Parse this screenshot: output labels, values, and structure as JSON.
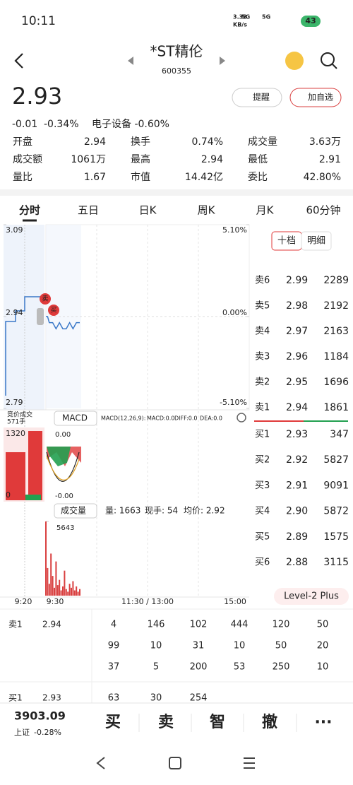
{
  "status": {
    "time": "10:11",
    "net_speed": "3.38",
    "net_unit": "KB/s",
    "signal1": "5G",
    "signal2": "5G",
    "battery": "43"
  },
  "header": {
    "title": "*ST精伦",
    "code": "600355"
  },
  "quote": {
    "price": "2.93",
    "change": "-0.01",
    "change_pct": "-0.34%",
    "sector": "电子设备 -0.60%",
    "remind": "提醒",
    "watch": "加自选"
  },
  "stats": [
    [
      {
        "label": "开盘",
        "value": "2.94"
      },
      {
        "label": "换手",
        "value": "0.74%"
      },
      {
        "label": "成交量",
        "value": "3.63万"
      }
    ],
    [
      {
        "label": "成交额",
        "value": "1061万"
      },
      {
        "label": "最高",
        "value": "2.94"
      },
      {
        "label": "最低",
        "value": "2.91"
      }
    ],
    [
      {
        "label": "量比",
        "value": "1.67"
      },
      {
        "label": "市值",
        "value": "14.42亿"
      },
      {
        "label": "委比",
        "value": "42.80%"
      }
    ]
  ],
  "tabs": [
    "分时",
    "五日",
    "日K",
    "周K",
    "月K",
    "60分钟"
  ],
  "chart_data": {
    "type": "line",
    "xlim": [
      0,
      240
    ],
    "x": [
      0,
      2,
      4,
      8,
      12,
      16,
      20,
      24,
      28,
      32,
      36,
      40
    ],
    "series": [
      {
        "color": "#3a78c8",
        "values": [
          2.94,
          2.94,
          2.93,
          2.93,
          2.92,
          2.93,
          2.92,
          2.92,
          2.93,
          2.92,
          2.93,
          2.93
        ]
      }
    ],
    "ylim": [
      2.79,
      3.09
    ],
    "yticks": [
      3.09,
      2.94,
      2.79
    ],
    "y2lim": [
      -5.1,
      5.1
    ],
    "y2ticks": [
      {
        "value": 5.1,
        "label": "5.10%"
      },
      {
        "value": 0,
        "label": "0.00%"
      },
      {
        "value": -5.1,
        "label": "-5.10%"
      }
    ],
    "markers": [
      "卖",
      "买"
    ],
    "auction": {
      "label": "竞价成交",
      "volume": "571手",
      "ticks": [
        "1320",
        "0"
      ]
    },
    "macd": {
      "name": "MACD",
      "params": "MACD(12,26,9):",
      "macd": "MACD:0.0",
      "diff": "DIFF:0.0",
      "dea": "DEA:0.0",
      "ticks": [
        "0.00",
        "-0.00"
      ]
    },
    "volume": {
      "name": "成交量",
      "amount": "量: 1663",
      "hand": "现手: 54",
      "avg": "均价: 2.92",
      "color": "#d94040",
      "x": [
        0,
        2,
        4,
        6,
        8,
        10,
        12,
        14,
        16,
        18,
        20,
        22,
        24,
        26,
        28,
        30,
        32,
        34,
        36,
        38,
        40
      ],
      "values": [
        5643,
        2100,
        900,
        3200,
        1500,
        600,
        2600,
        800,
        1200,
        400,
        700,
        1900,
        500,
        300,
        900,
        600,
        1100,
        400,
        700,
        300,
        500
      ],
      "ylim": [
        0,
        5643
      ],
      "yticks": [
        5643
      ]
    },
    "time_labels": [
      "9:20",
      "9:30",
      "11:30 / 13:00",
      "15:00"
    ]
  },
  "order_book": {
    "tabs": [
      "十档",
      "明细"
    ],
    "asks": [
      {
        "label": "卖6",
        "price": "2.99",
        "volume": "2289"
      },
      {
        "label": "卖5",
        "price": "2.98",
        "volume": "2192"
      },
      {
        "label": "卖4",
        "price": "2.97",
        "volume": "2163"
      },
      {
        "label": "卖3",
        "price": "2.96",
        "volume": "1184"
      },
      {
        "label": "卖2",
        "price": "2.95",
        "volume": "1696"
      },
      {
        "label": "卖1",
        "price": "2.94",
        "volume": "1861"
      }
    ],
    "bids": [
      {
        "label": "买1",
        "price": "2.93",
        "volume": "347"
      },
      {
        "label": "买2",
        "price": "2.92",
        "volume": "5827"
      },
      {
        "label": "买3",
        "price": "2.91",
        "volume": "9091"
      },
      {
        "label": "买4",
        "price": "2.90",
        "volume": "5872"
      },
      {
        "label": "买5",
        "price": "2.89",
        "volume": "1575"
      },
      {
        "label": "买6",
        "price": "2.88",
        "volume": "3115"
      }
    ],
    "level2": "Level-2 Plus"
  },
  "queue": {
    "ask": {
      "label": "卖1",
      "price": "2.94",
      "rows": [
        [
          "4",
          "146",
          "102",
          "444",
          "120",
          "50"
        ],
        [
          "99",
          "10",
          "31",
          "10",
          "50",
          "20"
        ],
        [
          "37",
          "5",
          "200",
          "53",
          "250",
          "10"
        ]
      ]
    },
    "bid": {
      "label": "买1",
      "price": "2.93",
      "rows": [
        [
          "63",
          "30",
          "254"
        ]
      ]
    }
  },
  "bottom": {
    "index": "3903.09",
    "index_name": "上证",
    "index_pct": "-0.28%",
    "buttons": [
      "买",
      "卖",
      "智",
      "撤",
      "···"
    ]
  }
}
